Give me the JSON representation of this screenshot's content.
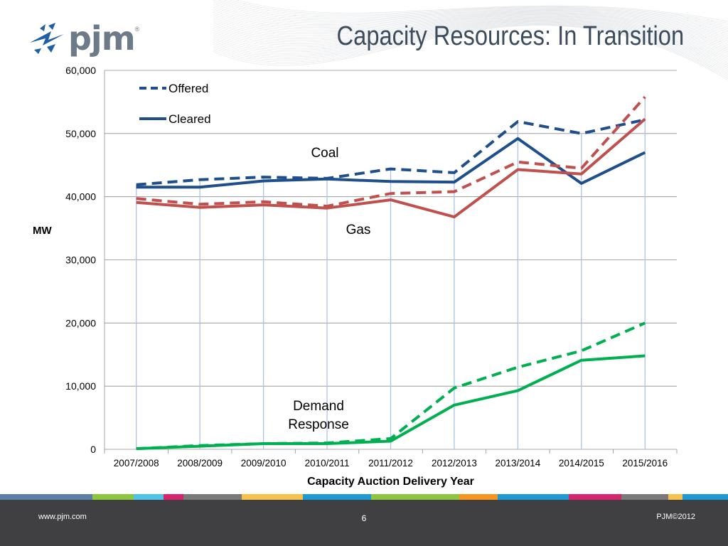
{
  "slide": {
    "title": "Capacity Resources: In Transition",
    "logo_text": "pjm",
    "logo_mark": "®"
  },
  "footer": {
    "url": "www.pjm.com",
    "page_number": "6",
    "copyright": "PJM©2012"
  },
  "colors": {
    "coal": "#1f4e8c",
    "gas": "#c0504d",
    "demand_response": "#00b050",
    "gridline": "#8e8e8e",
    "year_dropline": "#a9c4ea",
    "footer_bg": "#404042",
    "title": "#3d4c5c"
  },
  "chart_data": {
    "type": "line",
    "title": "",
    "xlabel": "Capacity Auction Delivery Year",
    "ylabel": "MW",
    "ylim": [
      0,
      60000
    ],
    "yticks": [
      0,
      10000,
      20000,
      30000,
      40000,
      50000,
      60000
    ],
    "ytick_labels": [
      "0",
      "10,000",
      "20,000",
      "30,000",
      "40,000",
      "50,000",
      "60,000"
    ],
    "grid": true,
    "categories": [
      "2007/2008",
      "2008/2009",
      "2009/2010",
      "2010/2011",
      "2011/2012",
      "2012/2013",
      "2013/2014",
      "2014/2015",
      "2015/2016"
    ],
    "legend": {
      "placement": "top-left",
      "entries": [
        {
          "label": "Offered",
          "style": "dashed"
        },
        {
          "label": "Cleared",
          "style": "solid"
        }
      ]
    },
    "annotations": [
      {
        "text": "Coal",
        "group": "coal"
      },
      {
        "text": "Gas",
        "group": "gas"
      },
      {
        "text": "Demand\nResponse",
        "group": "demand_response"
      }
    ],
    "series": [
      {
        "group": "coal",
        "kind": "Offered",
        "color": "#1f4e8c",
        "dashed": true,
        "values": [
          41900,
          42700,
          43100,
          42900,
          44400,
          43800,
          51900,
          50000,
          52200
        ]
      },
      {
        "group": "coal",
        "kind": "Cleared",
        "color": "#1f4e8c",
        "dashed": false,
        "values": [
          41500,
          41500,
          42500,
          42800,
          42400,
          42300,
          49200,
          42100,
          47000
        ]
      },
      {
        "group": "gas",
        "kind": "Offered",
        "color": "#c0504d",
        "dashed": true,
        "values": [
          39700,
          38800,
          39200,
          38500,
          40500,
          40800,
          45500,
          44500,
          55800
        ]
      },
      {
        "group": "gas",
        "kind": "Cleared",
        "color": "#c0504d",
        "dashed": false,
        "values": [
          39100,
          38300,
          38700,
          38200,
          39500,
          36800,
          44300,
          43600,
          52300
        ]
      },
      {
        "group": "demand_response",
        "kind": "Offered",
        "color": "#00b050",
        "dashed": true,
        "values": [
          100,
          600,
          900,
          1000,
          1700,
          9700,
          13000,
          15600,
          20000
        ]
      },
      {
        "group": "demand_response",
        "kind": "Cleared",
        "color": "#00b050",
        "dashed": false,
        "values": [
          100,
          500,
          900,
          900,
          1300,
          7000,
          9300,
          14100,
          14800
        ]
      }
    ]
  }
}
